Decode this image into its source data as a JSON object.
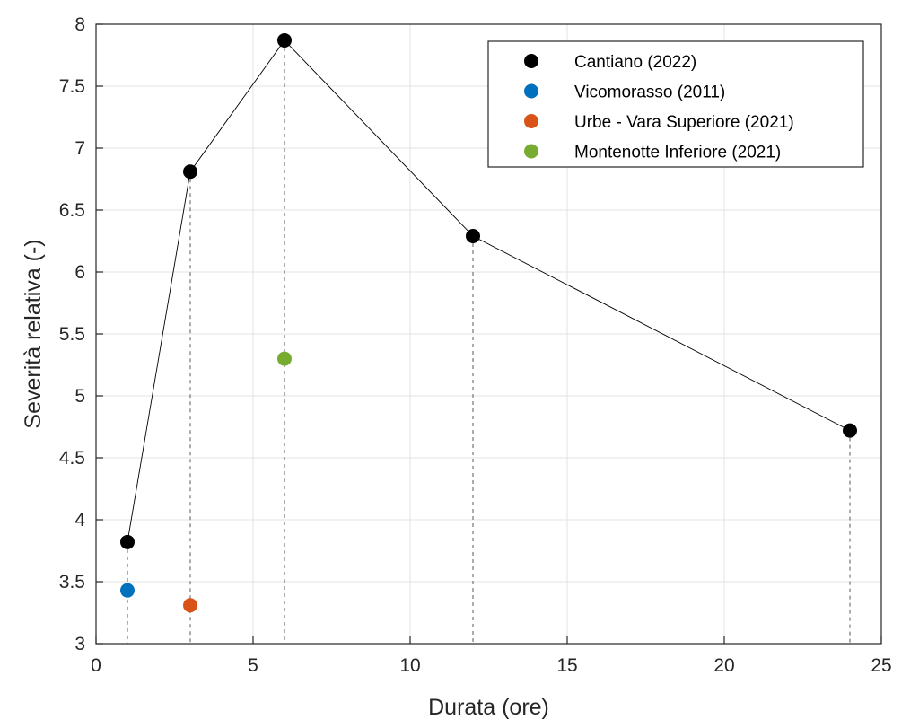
{
  "chart_data": {
    "type": "scatter",
    "xlabel": "Durata (ore)",
    "ylabel": "Severità relativa (-)",
    "xlim": [
      0,
      25
    ],
    "ylim": [
      3,
      8
    ],
    "xticks": [
      0,
      5,
      10,
      15,
      20,
      25
    ],
    "xtick_labels": [
      "0",
      "5",
      "10",
      "15",
      "20",
      "25"
    ],
    "yticks": [
      3,
      3.5,
      4,
      4.5,
      5,
      5.5,
      6,
      6.5,
      7,
      7.5,
      8
    ],
    "ytick_labels": [
      "3",
      "3.5",
      "4",
      "4.5",
      "5",
      "5.5",
      "6",
      "6.5",
      "7",
      "7.5",
      "8"
    ],
    "grid": true,
    "legend_position": "top-right",
    "vertical_guides_at_x": [
      1,
      3,
      6,
      12,
      24
    ],
    "series": [
      {
        "name": "Cantiano (2022)",
        "color": "#000000",
        "connected_by_line": true,
        "x": [
          1,
          3,
          6,
          12,
          24
        ],
        "y": [
          3.82,
          6.81,
          7.87,
          6.29,
          4.72
        ]
      },
      {
        "name": "Vicomorasso (2011)",
        "color": "#0072BD",
        "connected_by_line": false,
        "x": [
          1
        ],
        "y": [
          3.43
        ]
      },
      {
        "name": "Urbe - Vara Superiore (2021)",
        "color": "#D95319",
        "connected_by_line": false,
        "x": [
          3
        ],
        "y": [
          3.31
        ]
      },
      {
        "name": "Montenotte Inferiore (2021)",
        "color": "#77AC30",
        "connected_by_line": false,
        "x": [
          6
        ],
        "y": [
          5.3
        ]
      }
    ]
  }
}
